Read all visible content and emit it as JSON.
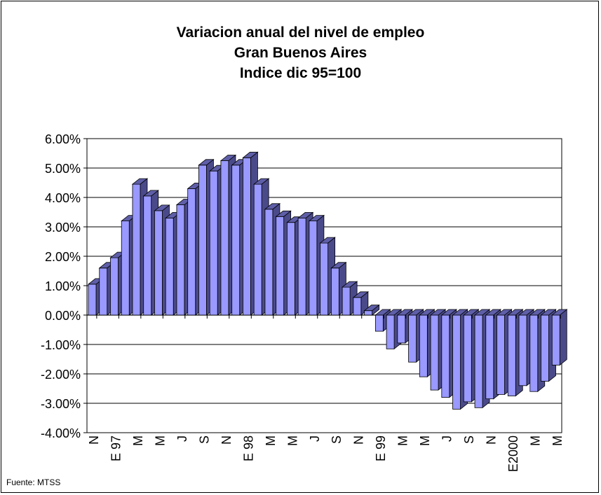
{
  "chart_data": {
    "type": "bar",
    "title": [
      "Variacion anual del nivel de empleo",
      "Gran Buenos Aires",
      "Indice dic 95=100"
    ],
    "source": "Fuente: MTSS",
    "ylim": [
      -0.04,
      0.06
    ],
    "y_ticks": [
      "6.00%",
      "5.00%",
      "4.00%",
      "3.00%",
      "2.00%",
      "1.00%",
      "0.00%",
      "-1.00%",
      "-2.00%",
      "-3.00%",
      "-4.00%"
    ],
    "grid": true,
    "legend": "none",
    "x_tick_labels": [
      "N",
      "E 97",
      "M",
      "M",
      "J",
      "S",
      "N",
      "E 98",
      "M",
      "M",
      "J",
      "S",
      "N",
      "E 99",
      "M",
      "M",
      "J",
      "S",
      "N",
      "E2000",
      "M",
      "M"
    ],
    "values": [
      1.05,
      1.6,
      1.95,
      3.2,
      4.45,
      4.05,
      3.55,
      3.3,
      3.75,
      4.3,
      5.1,
      4.9,
      5.25,
      5.1,
      5.35,
      4.45,
      3.6,
      3.35,
      3.15,
      3.3,
      3.2,
      2.45,
      1.6,
      0.95,
      0.6,
      0.15,
      -0.55,
      -1.15,
      -0.95,
      -1.6,
      -2.1,
      -2.55,
      -2.8,
      -3.2,
      -2.95,
      -3.15,
      -2.85,
      -2.7,
      -2.75,
      -2.4,
      -2.6,
      -2.25,
      -1.7
    ],
    "colors": {
      "bar_front": "#9999ff",
      "bar_side": "#4a4a8a",
      "bar_top": "#5e5ea8",
      "grid": "#000000"
    }
  }
}
